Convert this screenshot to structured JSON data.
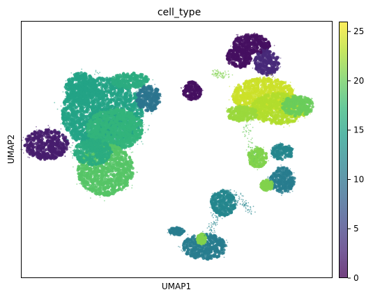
{
  "chart_data": {
    "type": "scatter",
    "title": "cell_type",
    "xlabel": "UMAP1",
    "ylabel": "UMAP2",
    "x_ticks_shown": false,
    "y_ticks_shown": false,
    "grid": false,
    "xlim": [
      0,
      100
    ],
    "ylim": [
      0,
      100
    ],
    "colorbar": {
      "colormap": "viridis",
      "range": [
        0,
        26
      ],
      "ticks": [
        0,
        5,
        10,
        15,
        20,
        25
      ],
      "tick_labels": [
        "0",
        "5",
        "10",
        "15",
        "20",
        "25"
      ],
      "position": "right"
    },
    "clusters": [
      {
        "cx": 8,
        "cy": 52,
        "rx": 7,
        "ry": 6,
        "value": 2
      },
      {
        "cx": 26,
        "cy": 64,
        "rx": 13,
        "ry": 14,
        "value": 15
      },
      {
        "cx": 19,
        "cy": 74,
        "rx": 5,
        "ry": 6,
        "value": 15
      },
      {
        "cx": 35,
        "cy": 77,
        "rx": 6,
        "ry": 3,
        "value": 16
      },
      {
        "cx": 30,
        "cy": 58,
        "rx": 9,
        "ry": 8,
        "value": 17
      },
      {
        "cx": 41,
        "cy": 70,
        "rx": 4,
        "ry": 5,
        "value": 10
      },
      {
        "cx": 27,
        "cy": 42,
        "rx": 9,
        "ry": 10,
        "value": 19
      },
      {
        "cx": 23,
        "cy": 49,
        "rx": 6,
        "ry": 5,
        "value": 16
      },
      {
        "cx": 55,
        "cy": 73,
        "rx": 3,
        "ry": 3.5,
        "value": 1
      },
      {
        "cx": 74,
        "cy": 91,
        "rx": 6,
        "ry": 4,
        "value": 1
      },
      {
        "cx": 70,
        "cy": 86,
        "rx": 4,
        "ry": 4,
        "value": 1
      },
      {
        "cx": 79,
        "cy": 84,
        "rx": 4,
        "ry": 5,
        "value": 3
      },
      {
        "cx": 78,
        "cy": 71,
        "rx": 10,
        "ry": 7,
        "value": 24
      },
      {
        "cx": 83,
        "cy": 66,
        "rx": 9,
        "ry": 6,
        "value": 23
      },
      {
        "cx": 71,
        "cy": 64,
        "rx": 5,
        "ry": 3,
        "value": 22
      },
      {
        "cx": 89,
        "cy": 67,
        "rx": 5,
        "ry": 4,
        "value": 20
      },
      {
        "cx": 76,
        "cy": 47,
        "rx": 3,
        "ry": 4,
        "value": 21
      },
      {
        "cx": 84,
        "cy": 49,
        "rx": 3.5,
        "ry": 3,
        "value": 12
      },
      {
        "cx": 84,
        "cy": 38,
        "rx": 4,
        "ry": 5,
        "value": 11
      },
      {
        "cx": 79,
        "cy": 36,
        "rx": 2,
        "ry": 2,
        "value": 21
      },
      {
        "cx": 65,
        "cy": 29,
        "rx": 4,
        "ry": 5,
        "value": 12
      },
      {
        "cx": 59,
        "cy": 12,
        "rx": 7,
        "ry": 5,
        "value": 11
      },
      {
        "cx": 58,
        "cy": 15,
        "rx": 1.5,
        "ry": 2,
        "value": 21
      },
      {
        "cx": 50,
        "cy": 18,
        "rx": 2.5,
        "ry": 1.5,
        "value": 11
      }
    ],
    "bridges": [
      {
        "x1": 72,
        "y1": 60,
        "x2": 76,
        "y2": 43,
        "value": 20
      },
      {
        "x1": 68,
        "y1": 34,
        "x2": 74,
        "y2": 25,
        "value": 12
      },
      {
        "x1": 60,
        "y1": 16,
        "x2": 64,
        "y2": 26,
        "value": 12
      },
      {
        "x1": 66,
        "y1": 79,
        "x2": 62,
        "y2": 80,
        "value": 21
      }
    ]
  }
}
